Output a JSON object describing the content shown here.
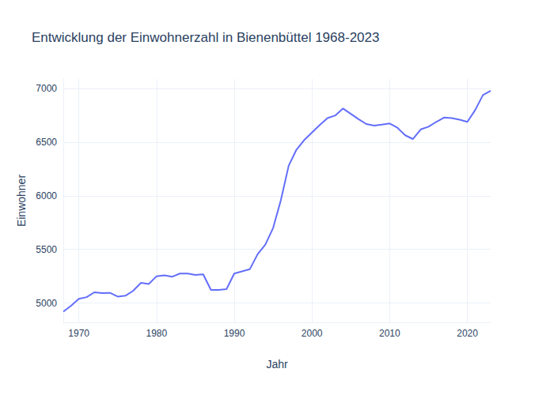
{
  "chart_data": {
    "type": "line",
    "title": "Entwicklung der Einwohnerzahl in Bienenbüttel 1968-2023",
    "x_label": "Jahr",
    "y_label": "Einwohner",
    "x": [
      1968,
      1969,
      1970,
      1971,
      1972,
      1973,
      1974,
      1975,
      1976,
      1977,
      1978,
      1979,
      1980,
      1981,
      1982,
      1983,
      1984,
      1985,
      1986,
      1987,
      1988,
      1989,
      1990,
      1991,
      1992,
      1993,
      1994,
      1995,
      1996,
      1997,
      1998,
      1999,
      2000,
      2001,
      2002,
      2003,
      2004,
      2005,
      2006,
      2007,
      2008,
      2009,
      2010,
      2011,
      2012,
      2013,
      2014,
      2015,
      2016,
      2017,
      2018,
      2019,
      2020,
      2021,
      2022,
      2023
    ],
    "values": [
      4920,
      4975,
      5040,
      5055,
      5100,
      5092,
      5095,
      5060,
      5068,
      5115,
      5188,
      5178,
      5250,
      5258,
      5245,
      5275,
      5275,
      5262,
      5268,
      5122,
      5122,
      5130,
      5275,
      5295,
      5315,
      5455,
      5545,
      5700,
      5960,
      6280,
      6430,
      6520,
      6590,
      6660,
      6725,
      6750,
      6815,
      6765,
      6715,
      6670,
      6655,
      6665,
      6675,
      6635,
      6565,
      6530,
      6620,
      6645,
      6690,
      6730,
      6725,
      6710,
      6690,
      6800,
      6940,
      6980
    ],
    "color": "#636efa",
    "xlim": [
      1968,
      2023
    ],
    "xticks": [
      1970,
      1980,
      1990,
      2000,
      2010,
      2020
    ],
    "ylim": [
      4820,
      7090
    ],
    "yticks": [
      5000,
      5500,
      6000,
      6500,
      7000
    ],
    "grid": true
  }
}
